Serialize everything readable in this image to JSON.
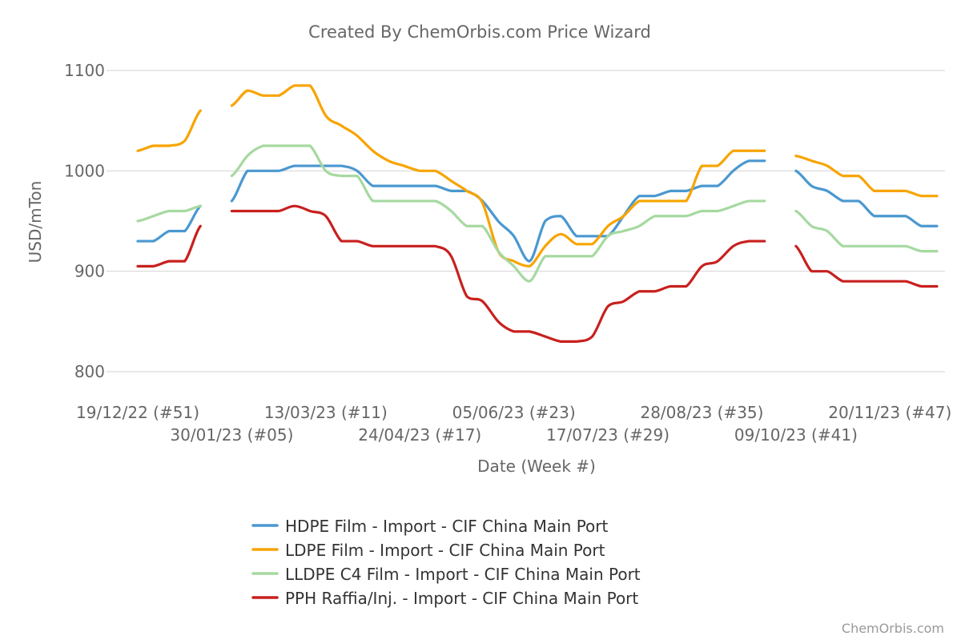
{
  "chart_data": {
    "type": "line",
    "title": "Created By ChemOrbis.com Price Wizard",
    "xlabel": "Date (Week #)",
    "ylabel": "USD/mTon",
    "ylim": [
      800,
      1100
    ],
    "yticks": [
      800,
      900,
      1000,
      1100
    ],
    "grid": true,
    "legend_position": "bottom",
    "credit": "ChemOrbis.com",
    "x": [
      "19/12/22",
      "26/12/22",
      "02/01/23",
      "09/01/23",
      "16/01/23",
      "23/01/23",
      "30/01/23",
      "06/02/23",
      "13/02/23",
      "20/02/23",
      "27/02/23",
      "06/03/23",
      "13/03/23",
      "20/03/23",
      "27/03/23",
      "03/04/23",
      "10/04/23",
      "17/04/23",
      "24/04/23",
      "01/05/23",
      "08/05/23",
      "15/05/23",
      "22/05/23",
      "29/05/23",
      "05/06/23",
      "12/06/23",
      "19/06/23",
      "26/06/23",
      "03/07/23",
      "10/07/23",
      "17/07/23",
      "24/07/23",
      "31/07/23",
      "07/08/23",
      "14/08/23",
      "21/08/23",
      "28/08/23",
      "04/09/23",
      "11/09/23",
      "18/09/23",
      "25/09/23",
      "02/10/23",
      "09/10/23",
      "16/10/23",
      "23/10/23",
      "30/10/23",
      "06/11/23",
      "13/11/23",
      "20/11/23",
      "27/11/23",
      "04/12/23",
      "11/12/23"
    ],
    "xticks": [
      {
        "index": 0,
        "label": "19/12/22 (#51)"
      },
      {
        "index": 6,
        "label": "30/01/23 (#05)"
      },
      {
        "index": 12,
        "label": "13/03/23 (#11)"
      },
      {
        "index": 18,
        "label": "24/04/23 (#17)"
      },
      {
        "index": 24,
        "label": "05/06/23 (#23)"
      },
      {
        "index": 30,
        "label": "17/07/23 (#29)"
      },
      {
        "index": 36,
        "label": "28/08/23 (#35)"
      },
      {
        "index": 42,
        "label": "09/10/23 (#41)"
      },
      {
        "index": 48,
        "label": "20/11/23 (#47)"
      }
    ],
    "series": [
      {
        "name": "HDPE Film - Import - CIF China Main Port",
        "color": "#4a98d0",
        "values": [
          930,
          930,
          940,
          940,
          965,
          null,
          970,
          1000,
          1000,
          1000,
          1005,
          1005,
          1005,
          1005,
          1000,
          985,
          985,
          985,
          985,
          985,
          980,
          980,
          970,
          950,
          935,
          910,
          950,
          955,
          935,
          935,
          935,
          955,
          975,
          975,
          980,
          980,
          985,
          985,
          1000,
          1010,
          1010,
          null,
          1000,
          985,
          980,
          970,
          970,
          955,
          955,
          955,
          945,
          945
        ]
      },
      {
        "name": "LDPE Film - Import - CIF China Main Port",
        "color": "#f7a400",
        "values": [
          1020,
          1025,
          1025,
          1030,
          1060,
          null,
          1065,
          1080,
          1075,
          1075,
          1085,
          1085,
          1055,
          1045,
          1035,
          1020,
          1010,
          1005,
          1000,
          1000,
          990,
          980,
          968,
          920,
          910,
          905,
          925,
          937,
          927,
          927,
          945,
          955,
          970,
          970,
          970,
          970,
          1005,
          1005,
          1020,
          1020,
          1020,
          null,
          1015,
          1010,
          1005,
          995,
          995,
          980,
          980,
          980,
          975,
          975
        ]
      },
      {
        "name": "LLDPE C4 Film - Import - CIF China Main Port",
        "color": "#a6d9a0",
        "values": [
          950,
          955,
          960,
          960,
          965,
          null,
          995,
          1015,
          1025,
          1025,
          1025,
          1025,
          1000,
          995,
          995,
          970,
          970,
          970,
          970,
          970,
          960,
          945,
          945,
          920,
          905,
          890,
          915,
          915,
          915,
          915,
          935,
          940,
          945,
          955,
          955,
          955,
          960,
          960,
          965,
          970,
          970,
          null,
          960,
          945,
          940,
          925,
          925,
          925,
          925,
          925,
          920,
          920
        ]
      },
      {
        "name": "PPH Raffia/Inj. - Import - CIF China Main Port",
        "color": "#c8201e",
        "values": [
          905,
          905,
          910,
          910,
          945,
          null,
          960,
          960,
          960,
          960,
          965,
          960,
          955,
          930,
          930,
          925,
          925,
          925,
          925,
          925,
          915,
          875,
          870,
          850,
          840,
          840,
          835,
          830,
          830,
          835,
          865,
          870,
          880,
          880,
          885,
          885,
          905,
          910,
          925,
          930,
          930,
          null,
          925,
          900,
          900,
          890,
          890,
          890,
          890,
          890,
          885,
          885
        ]
      }
    ]
  }
}
